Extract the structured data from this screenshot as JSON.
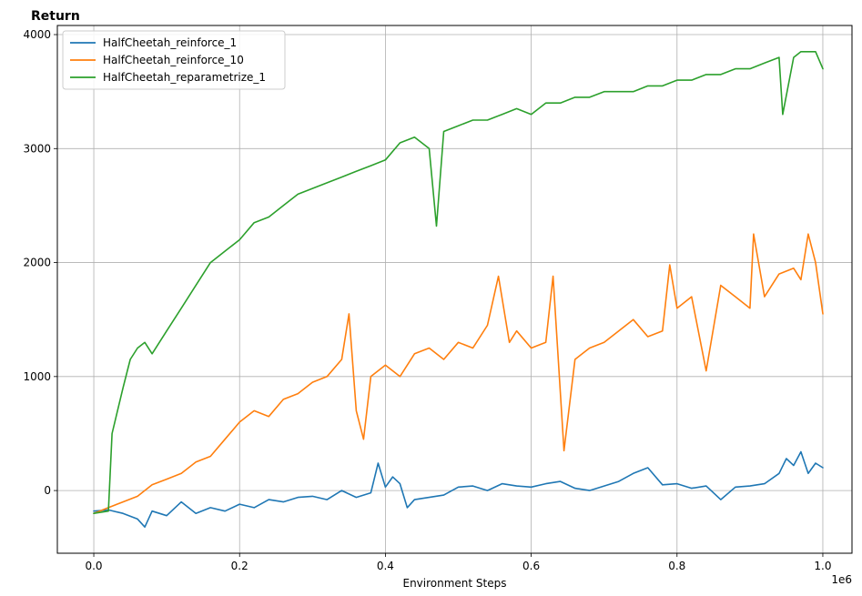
{
  "chart_data": {
    "type": "line",
    "title": "Return",
    "xlabel": "Environment Steps",
    "ylabel": "",
    "x_offset_label": "1e6",
    "xlim": [
      -0.05,
      1.04
    ],
    "ylim": [
      -550,
      4080
    ],
    "x_ticks": [
      0.0,
      0.2,
      0.4,
      0.6,
      0.8,
      1.0
    ],
    "x_tick_labels": [
      "0.0",
      "0.2",
      "0.4",
      "0.6",
      "0.8",
      "1.0"
    ],
    "y_ticks": [
      0,
      1000,
      2000,
      3000,
      4000
    ],
    "y_tick_labels": [
      "0",
      "1000",
      "2000",
      "3000",
      "4000"
    ],
    "grid": true,
    "legend_position": "top-left",
    "series": [
      {
        "name": "HalfCheetah_reinforce_1",
        "color": "#1f77b4",
        "x": [
          0.0,
          0.02,
          0.04,
          0.06,
          0.07,
          0.08,
          0.1,
          0.12,
          0.14,
          0.16,
          0.18,
          0.2,
          0.22,
          0.24,
          0.26,
          0.28,
          0.3,
          0.32,
          0.34,
          0.36,
          0.38,
          0.39,
          0.4,
          0.41,
          0.42,
          0.43,
          0.44,
          0.46,
          0.48,
          0.5,
          0.52,
          0.54,
          0.56,
          0.58,
          0.6,
          0.62,
          0.64,
          0.66,
          0.68,
          0.7,
          0.72,
          0.74,
          0.76,
          0.78,
          0.8,
          0.82,
          0.84,
          0.86,
          0.88,
          0.9,
          0.92,
          0.94,
          0.95,
          0.96,
          0.97,
          0.98,
          0.99,
          1.0
        ],
        "y": [
          -180,
          -170,
          -200,
          -250,
          -320,
          -180,
          -220,
          -100,
          -200,
          -150,
          -180,
          -120,
          -150,
          -80,
          -100,
          -60,
          -50,
          -80,
          0,
          -60,
          -20,
          240,
          30,
          120,
          60,
          -150,
          -80,
          -60,
          -40,
          30,
          40,
          0,
          60,
          40,
          30,
          60,
          80,
          20,
          0,
          40,
          80,
          150,
          200,
          50,
          60,
          20,
          40,
          -80,
          30,
          40,
          60,
          150,
          280,
          220,
          340,
          150,
          240,
          200
        ]
      },
      {
        "name": "HalfCheetah_reinforce_10",
        "color": "#ff7f0e",
        "x": [
          0.0,
          0.02,
          0.04,
          0.06,
          0.08,
          0.1,
          0.12,
          0.14,
          0.16,
          0.18,
          0.2,
          0.22,
          0.24,
          0.26,
          0.28,
          0.3,
          0.32,
          0.34,
          0.35,
          0.36,
          0.37,
          0.38,
          0.4,
          0.42,
          0.44,
          0.46,
          0.48,
          0.5,
          0.52,
          0.54,
          0.555,
          0.57,
          0.58,
          0.6,
          0.62,
          0.63,
          0.645,
          0.66,
          0.68,
          0.7,
          0.72,
          0.74,
          0.76,
          0.78,
          0.79,
          0.8,
          0.82,
          0.84,
          0.86,
          0.88,
          0.9,
          0.905,
          0.92,
          0.94,
          0.96,
          0.97,
          0.98,
          0.99,
          1.0
        ],
        "y": [
          -200,
          -150,
          -100,
          -50,
          50,
          100,
          150,
          250,
          300,
          450,
          600,
          700,
          650,
          800,
          850,
          950,
          1000,
          1150,
          1550,
          700,
          450,
          1000,
          1100,
          1000,
          1200,
          1250,
          1150,
          1300,
          1250,
          1450,
          1880,
          1300,
          1400,
          1250,
          1300,
          1880,
          350,
          1150,
          1250,
          1300,
          1400,
          1500,
          1350,
          1400,
          1980,
          1600,
          1700,
          1050,
          1800,
          1700,
          1600,
          2250,
          1700,
          1900,
          1950,
          1850,
          2250,
          2000,
          1550
        ]
      },
      {
        "name": "HalfCheetah_reparametrize_1",
        "color": "#2ca02c",
        "x": [
          0.0,
          0.02,
          0.025,
          0.04,
          0.05,
          0.06,
          0.07,
          0.08,
          0.1,
          0.12,
          0.14,
          0.16,
          0.18,
          0.2,
          0.22,
          0.24,
          0.26,
          0.28,
          0.3,
          0.32,
          0.34,
          0.36,
          0.38,
          0.4,
          0.42,
          0.44,
          0.46,
          0.47,
          0.48,
          0.5,
          0.52,
          0.54,
          0.56,
          0.58,
          0.6,
          0.62,
          0.64,
          0.66,
          0.68,
          0.7,
          0.72,
          0.74,
          0.76,
          0.78,
          0.8,
          0.82,
          0.84,
          0.86,
          0.88,
          0.9,
          0.92,
          0.94,
          0.945,
          0.96,
          0.97,
          0.98,
          0.99,
          1.0
        ],
        "y": [
          -200,
          -180,
          500,
          900,
          1150,
          1250,
          1300,
          1200,
          1400,
          1600,
          1800,
          2000,
          2100,
          2200,
          2350,
          2400,
          2500,
          2600,
          2650,
          2700,
          2750,
          2800,
          2850,
          2900,
          3050,
          3100,
          3000,
          2320,
          3150,
          3200,
          3250,
          3250,
          3300,
          3350,
          3300,
          3400,
          3400,
          3450,
          3450,
          3500,
          3500,
          3500,
          3550,
          3550,
          3600,
          3600,
          3650,
          3650,
          3700,
          3700,
          3750,
          3800,
          3300,
          3800,
          3850,
          3850,
          3850,
          3700
        ]
      }
    ]
  }
}
